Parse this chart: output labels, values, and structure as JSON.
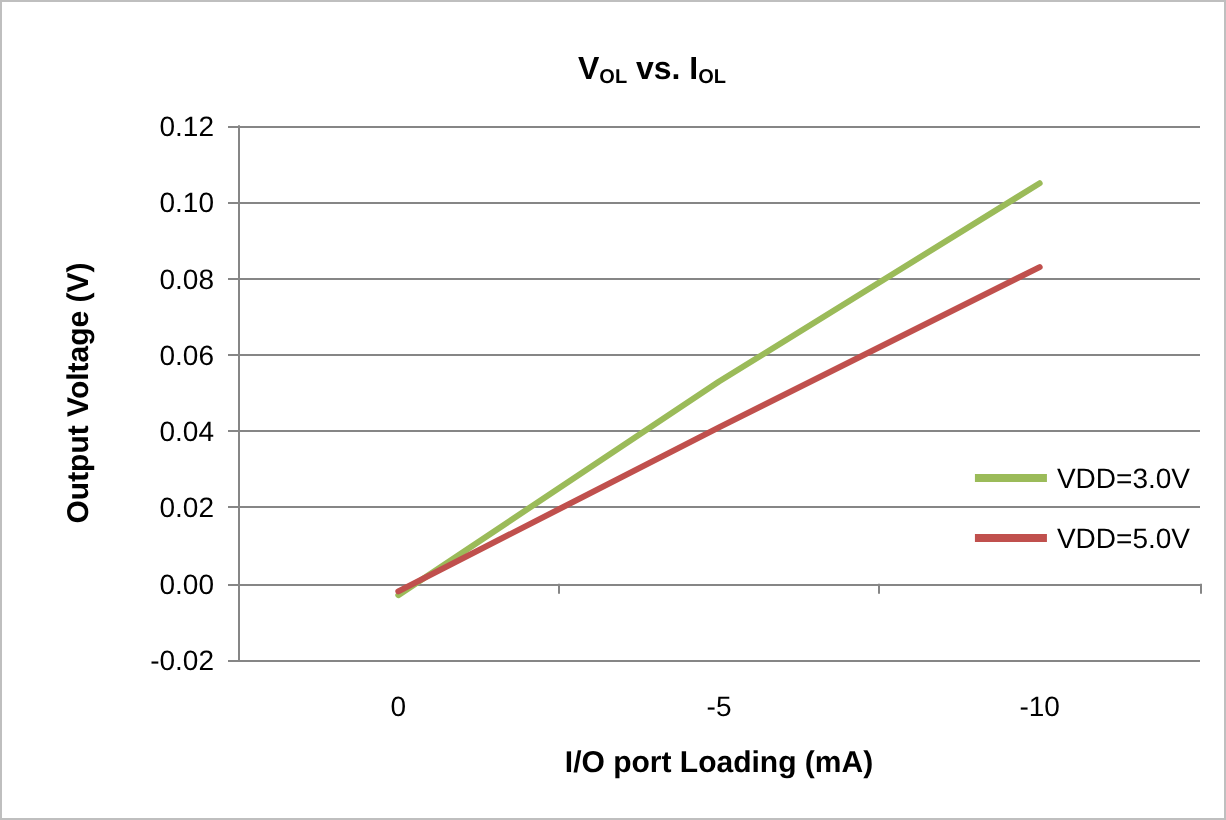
{
  "chart_data": {
    "type": "line",
    "title": "V$_{OL}$ vs. I$_{OL}$",
    "xlabel": "I/O port Loading (mA)",
    "ylabel": "Output Voltage (V)",
    "categories": [
      "0",
      "-5",
      "-10"
    ],
    "series": [
      {
        "name": "VDD=3.0V",
        "color": "#9bbb59",
        "values": [
          -0.003,
          0.053,
          0.105
        ]
      },
      {
        "name": "VDD=5.0V",
        "color": "#c0504d",
        "values": [
          -0.002,
          0.041,
          0.083
        ]
      }
    ],
    "ylim": [
      -0.02,
      0.12
    ],
    "yticks": [
      {
        "value": -0.02,
        "label": "-0.02"
      },
      {
        "value": 0,
        "label": "0.00"
      },
      {
        "value": 0.02,
        "label": "0.02"
      },
      {
        "value": 0.04,
        "label": "0.04"
      },
      {
        "value": 0.06,
        "label": "0.06"
      },
      {
        "value": 0.08,
        "label": "0.08"
      },
      {
        "value": 0.1,
        "label": "0.10"
      },
      {
        "value": 0.12,
        "label": "0.12"
      }
    ],
    "grid": "y",
    "legend": "right",
    "marker": "none",
    "line_style": "solid"
  }
}
